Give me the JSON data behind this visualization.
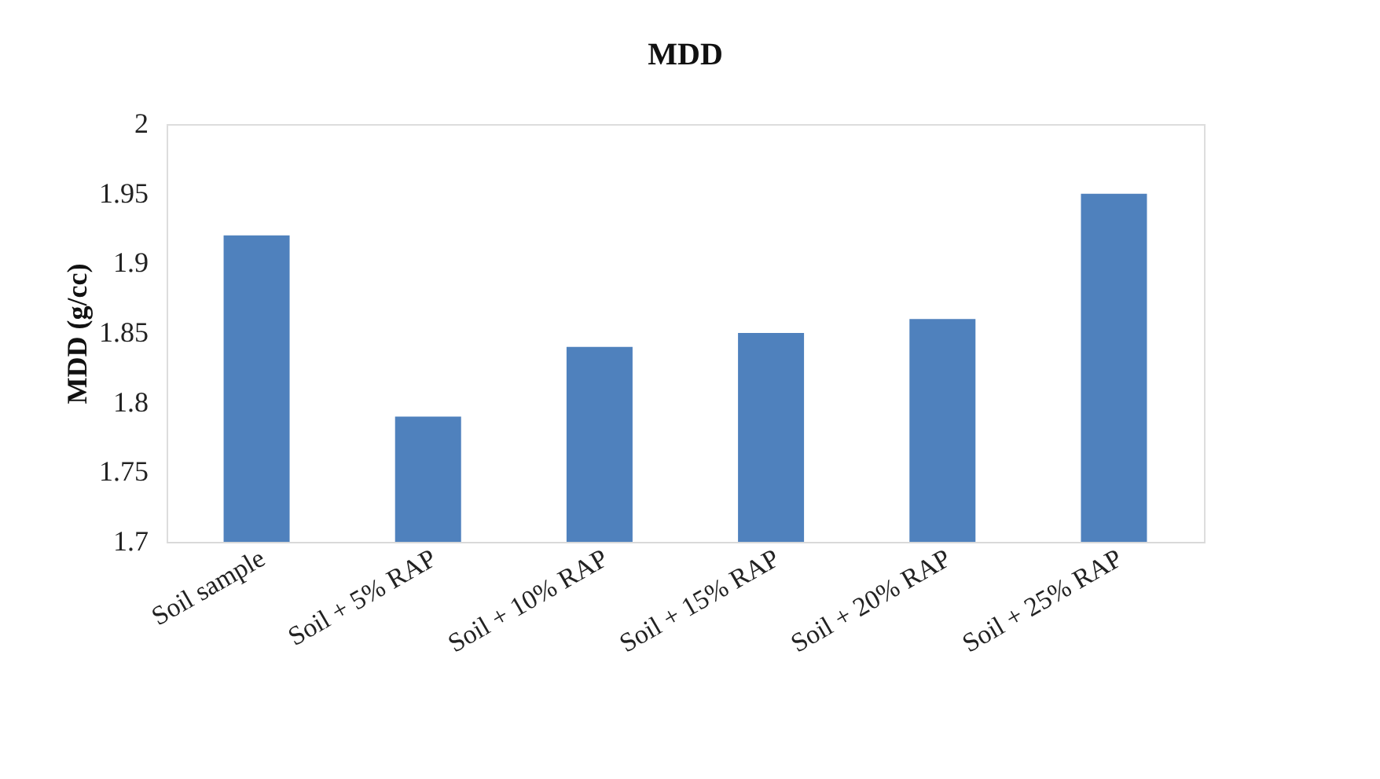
{
  "chart_data": {
    "type": "bar",
    "title": "MDD",
    "ylabel": "MDD (g/cc)",
    "categories": [
      "Soil sample",
      "Soil + 5% RAP",
      "Soil + 10% RAP",
      "Soil + 15% RAP",
      "Soil + 20% RAP",
      "Soil + 25% RAP"
    ],
    "values": [
      1.92,
      1.79,
      1.84,
      1.85,
      1.86,
      1.95
    ],
    "color": "#4f81bd",
    "ylim": [
      1.7,
      2
    ],
    "yticks": [
      1.7,
      1.75,
      1.8,
      1.85,
      1.9,
      1.95,
      2
    ],
    "grid": false
  }
}
